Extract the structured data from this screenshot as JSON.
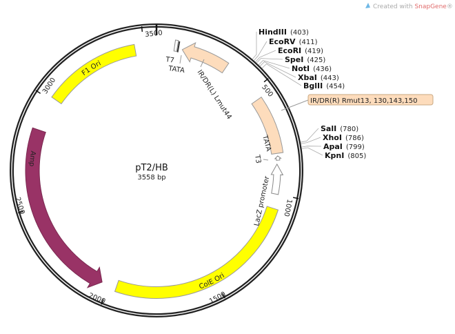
{
  "watermark": {
    "prefix": "Created with ",
    "brand": "SnapGene",
    "suffix": "®",
    "brand_color": "#e06a6a",
    "icon": "snapgene-logo-icon"
  },
  "plasmid": {
    "name": "pT2/HB",
    "length_label": "3558 bp",
    "length": 3558
  },
  "ticks": [
    500,
    1000,
    1500,
    2000,
    2500,
    3000,
    3500
  ],
  "features": [
    {
      "name": "F1 Ori",
      "start": 3014,
      "end": 3459,
      "strand": "none",
      "color": "#ffff00",
      "label": "F1 Ori"
    },
    {
      "name": "Amp",
      "start": 2036,
      "end": 2856,
      "strand": "reverse",
      "color": "#993366",
      "label": "Amp"
    },
    {
      "name": "ColE Ori",
      "start": 1067,
      "end": 1967,
      "strand": "none",
      "color": "#ffff00",
      "label": "ColE Ori"
    },
    {
      "name": "IR/DR(L) Lmut44",
      "start": 119,
      "end": 336,
      "strand": "reverse",
      "color": "#fddcbc",
      "label": "IR/DR(L) Lmut44"
    },
    {
      "name": "IR/DR(R) Rmut13, 130,143,150",
      "start": 544,
      "end": 810,
      "strand": "none",
      "color": "#fddcbc",
      "label": "IR/DR(R) Rmut13, 130,143,150"
    },
    {
      "name": "LacZ promoter",
      "start": 860,
      "end": 1000,
      "strand": "reverse",
      "color": "#ffffff",
      "label": "LacZ promoter"
    },
    {
      "name": "T3",
      "start": 822,
      "end": 842,
      "strand": "reverse",
      "color": "#ffffff",
      "label": "T3"
    },
    {
      "name": "T7",
      "start": 82,
      "end": 95,
      "strand": "none",
      "color": "#ffffff",
      "label": "T7"
    }
  ],
  "markers": [
    {
      "label": "TATA",
      "position": 100
    },
    {
      "label": "TATA",
      "position": 815
    }
  ],
  "sites": [
    {
      "name": "HindIII",
      "position": 403
    },
    {
      "name": "EcoRV",
      "position": 411
    },
    {
      "name": "EcoRI",
      "position": 419
    },
    {
      "name": "SpeI",
      "position": 425
    },
    {
      "name": "NotI",
      "position": 436
    },
    {
      "name": "XbaI",
      "position": 443
    },
    {
      "name": "BglII",
      "position": 454
    },
    {
      "name": "SalI",
      "position": 780
    },
    {
      "name": "XhoI",
      "position": 786
    },
    {
      "name": "ApaI",
      "position": 799
    },
    {
      "name": "KpnI",
      "position": 805
    }
  ]
}
